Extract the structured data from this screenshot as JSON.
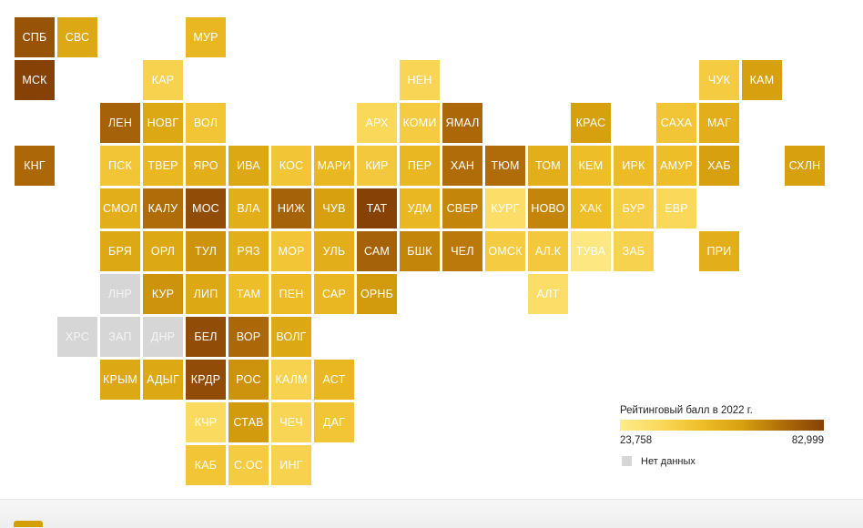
{
  "colors": {
    "no_data": "#d6d6d6",
    "scale_low": "#fde98a",
    "scale_mid": "#d6a611",
    "scale_high": "#8a4707"
  },
  "legend": {
    "title": "Рейтинговый балл в 2022 г.",
    "min_label": "23,758",
    "max_label": "82,999",
    "no_data_label": "Нет данных"
  },
  "chart_data": {
    "type": "heatmap",
    "title": "",
    "range": [
      23.758,
      82.999
    ],
    "regions": [
      {
        "code": "СПБ",
        "col": 0,
        "row": 0,
        "level": 0.92
      },
      {
        "code": "СВС",
        "col": 1,
        "row": 0,
        "level": 0.55
      },
      {
        "code": "МУР",
        "col": 4,
        "row": 0,
        "level": 0.45
      },
      {
        "code": "МСК",
        "col": 0,
        "row": 1,
        "level": 1.0
      },
      {
        "code": "КАР",
        "col": 3,
        "row": 1,
        "level": 0.25
      },
      {
        "code": "НЕН",
        "col": 9,
        "row": 1,
        "level": 0.22
      },
      {
        "code": "ЧУК",
        "col": 16,
        "row": 1,
        "level": 0.3
      },
      {
        "code": "КАМ",
        "col": 17,
        "row": 1,
        "level": 0.6
      },
      {
        "code": "ЛЕН",
        "col": 2,
        "row": 2,
        "level": 0.85
      },
      {
        "code": "НОВГ",
        "col": 3,
        "row": 2,
        "level": 0.55
      },
      {
        "code": "ВОЛ",
        "col": 4,
        "row": 2,
        "level": 0.35
      },
      {
        "code": "АРХ",
        "col": 8,
        "row": 2,
        "level": 0.2
      },
      {
        "code": "КОМИ",
        "col": 9,
        "row": 2,
        "level": 0.3
      },
      {
        "code": "ЯМАЛ",
        "col": 10,
        "row": 2,
        "level": 0.82
      },
      {
        "code": "КРАС",
        "col": 13,
        "row": 2,
        "level": 0.6
      },
      {
        "code": "САХА",
        "col": 15,
        "row": 2,
        "level": 0.35
      },
      {
        "code": "МАГ",
        "col": 16,
        "row": 2,
        "level": 0.5
      },
      {
        "code": "КНГ",
        "col": 0,
        "row": 3,
        "level": 0.82
      },
      {
        "code": "ПСК",
        "col": 2,
        "row": 3,
        "level": 0.35
      },
      {
        "code": "ТВЕР",
        "col": 3,
        "row": 3,
        "level": 0.45
      },
      {
        "code": "ЯРО",
        "col": 4,
        "row": 3,
        "level": 0.5
      },
      {
        "code": "ИВА",
        "col": 5,
        "row": 3,
        "level": 0.55
      },
      {
        "code": "КОС",
        "col": 6,
        "row": 3,
        "level": 0.35
      },
      {
        "code": "МАРИ",
        "col": 7,
        "row": 3,
        "level": 0.45
      },
      {
        "code": "КИР",
        "col": 8,
        "row": 3,
        "level": 0.32
      },
      {
        "code": "ПЕР",
        "col": 9,
        "row": 3,
        "level": 0.45
      },
      {
        "code": "ХАН",
        "col": 10,
        "row": 3,
        "level": 0.8
      },
      {
        "code": "ТЮМ",
        "col": 11,
        "row": 3,
        "level": 0.8
      },
      {
        "code": "ТОМ",
        "col": 12,
        "row": 3,
        "level": 0.5
      },
      {
        "code": "КЕМ",
        "col": 13,
        "row": 3,
        "level": 0.4
      },
      {
        "code": "ИРК",
        "col": 14,
        "row": 3,
        "level": 0.42
      },
      {
        "code": "АМУР",
        "col": 15,
        "row": 3,
        "level": 0.4
      },
      {
        "code": "ХАБ",
        "col": 16,
        "row": 3,
        "level": 0.6
      },
      {
        "code": "СХЛН",
        "col": 18,
        "row": 3,
        "level": 0.6
      },
      {
        "code": "СМОЛ",
        "col": 2,
        "row": 4,
        "level": 0.5
      },
      {
        "code": "КАЛУ",
        "col": 3,
        "row": 4,
        "level": 0.8
      },
      {
        "code": "МОС",
        "col": 4,
        "row": 4,
        "level": 0.95
      },
      {
        "code": "ВЛА",
        "col": 5,
        "row": 4,
        "level": 0.5
      },
      {
        "code": "НИЖ",
        "col": 6,
        "row": 4,
        "level": 0.85
      },
      {
        "code": "ЧУВ",
        "col": 7,
        "row": 4,
        "level": 0.6
      },
      {
        "code": "ТАТ",
        "col": 8,
        "row": 4,
        "level": 1.0
      },
      {
        "code": "УДМ",
        "col": 9,
        "row": 4,
        "level": 0.45
      },
      {
        "code": "СВЕР",
        "col": 10,
        "row": 4,
        "level": 0.7
      },
      {
        "code": "КУРГ",
        "col": 11,
        "row": 4,
        "level": 0.15
      },
      {
        "code": "НОВО",
        "col": 12,
        "row": 4,
        "level": 0.7
      },
      {
        "code": "ХАК",
        "col": 13,
        "row": 4,
        "level": 0.4
      },
      {
        "code": "БУР",
        "col": 14,
        "row": 4,
        "level": 0.28
      },
      {
        "code": "ЕВР",
        "col": 15,
        "row": 4,
        "level": 0.2
      },
      {
        "code": "БРЯ",
        "col": 2,
        "row": 5,
        "level": 0.55
      },
      {
        "code": "ОРЛ",
        "col": 3,
        "row": 5,
        "level": 0.55
      },
      {
        "code": "ТУЛ",
        "col": 4,
        "row": 5,
        "level": 0.65
      },
      {
        "code": "РЯЗ",
        "col": 5,
        "row": 5,
        "level": 0.5
      },
      {
        "code": "МОР",
        "col": 6,
        "row": 5,
        "level": 0.35
      },
      {
        "code": "УЛЬ",
        "col": 7,
        "row": 5,
        "level": 0.5
      },
      {
        "code": "САМ",
        "col": 8,
        "row": 5,
        "level": 0.85
      },
      {
        "code": "БШК",
        "col": 9,
        "row": 5,
        "level": 0.7
      },
      {
        "code": "ЧЕЛ",
        "col": 10,
        "row": 5,
        "level": 0.75
      },
      {
        "code": "ОМСК",
        "col": 11,
        "row": 5,
        "level": 0.3
      },
      {
        "code": "АЛ.К",
        "col": 12,
        "row": 5,
        "level": 0.32
      },
      {
        "code": "ТУВА",
        "col": 13,
        "row": 5,
        "level": 0.05
      },
      {
        "code": "ЗАБ",
        "col": 14,
        "row": 5,
        "level": 0.25
      },
      {
        "code": "ПРИ",
        "col": 16,
        "row": 5,
        "level": 0.5
      },
      {
        "code": "ЛНР",
        "col": 2,
        "row": 6,
        "level": null
      },
      {
        "code": "КУР",
        "col": 3,
        "row": 6,
        "level": 0.65
      },
      {
        "code": "ЛИП",
        "col": 4,
        "row": 6,
        "level": 0.55
      },
      {
        "code": "ТАМ",
        "col": 5,
        "row": 6,
        "level": 0.4
      },
      {
        "code": "ПЕН",
        "col": 6,
        "row": 6,
        "level": 0.42
      },
      {
        "code": "САР",
        "col": 7,
        "row": 6,
        "level": 0.45
      },
      {
        "code": "ОРНБ",
        "col": 8,
        "row": 6,
        "level": 0.62
      },
      {
        "code": "АЛТ",
        "col": 12,
        "row": 6,
        "level": 0.15
      },
      {
        "code": "ХРС",
        "col": 1,
        "row": 7,
        "level": null
      },
      {
        "code": "ЗАП",
        "col": 2,
        "row": 7,
        "level": null
      },
      {
        "code": "ДНР",
        "col": 3,
        "row": 7,
        "level": null
      },
      {
        "code": "БЕЛ",
        "col": 4,
        "row": 7,
        "level": 0.95
      },
      {
        "code": "ВОР",
        "col": 5,
        "row": 7,
        "level": 0.82
      },
      {
        "code": "ВОЛГ",
        "col": 6,
        "row": 7,
        "level": 0.55
      },
      {
        "code": "КРЫМ",
        "col": 2,
        "row": 8,
        "level": 0.55
      },
      {
        "code": "АДЫГ",
        "col": 3,
        "row": 8,
        "level": 0.55
      },
      {
        "code": "КРДР",
        "col": 4,
        "row": 8,
        "level": 0.95
      },
      {
        "code": "РОС",
        "col": 5,
        "row": 8,
        "level": 0.65
      },
      {
        "code": "КАЛМ",
        "col": 6,
        "row": 8,
        "level": 0.25
      },
      {
        "code": "АСТ",
        "col": 7,
        "row": 8,
        "level": 0.45
      },
      {
        "code": "КЧР",
        "col": 4,
        "row": 9,
        "level": 0.18
      },
      {
        "code": "СТАВ",
        "col": 5,
        "row": 9,
        "level": 0.62
      },
      {
        "code": "ЧЕЧ",
        "col": 6,
        "row": 9,
        "level": 0.22
      },
      {
        "code": "ДАГ",
        "col": 7,
        "row": 9,
        "level": 0.35
      },
      {
        "code": "КАБ",
        "col": 4,
        "row": 10,
        "level": 0.35
      },
      {
        "code": "С.ОС",
        "col": 5,
        "row": 10,
        "level": 0.3
      },
      {
        "code": "ИНГ",
        "col": 6,
        "row": 10,
        "level": 0.25
      }
    ]
  }
}
